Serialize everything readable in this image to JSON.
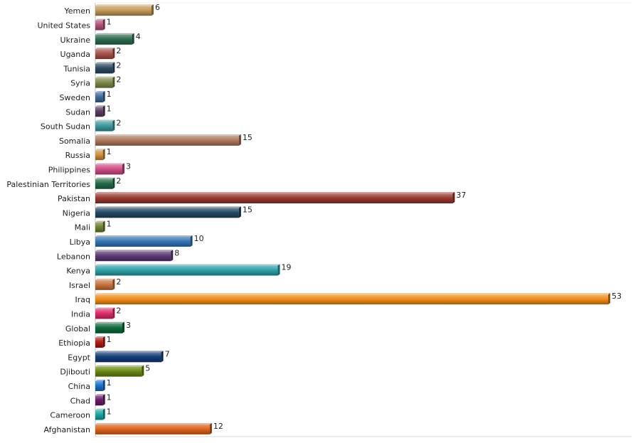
{
  "chart_data": {
    "type": "bar",
    "orientation": "horizontal",
    "title": "",
    "xlabel": "",
    "ylabel": "",
    "xlim": [
      0,
      53
    ],
    "grid": false,
    "legend": "none",
    "categories": [
      "Yemen",
      "United States",
      "Ukraine",
      "Uganda",
      "Tunisia",
      "Syria",
      "Sweden",
      "Sudan",
      "South Sudan",
      "Somalia",
      "Russia",
      "Philippines",
      "Palestinian Territories",
      "Pakistan",
      "Nigeria",
      "Mali",
      "Libya",
      "Lebanon",
      "Kenya",
      "Israel",
      "Iraq",
      "India",
      "Global",
      "Ethiopia",
      "Egypt",
      "Djibouti",
      "China",
      "Chad",
      "Cameroon",
      "Afghanistan"
    ],
    "values": [
      6,
      1,
      4,
      2,
      2,
      2,
      1,
      1,
      2,
      15,
      1,
      3,
      2,
      37,
      15,
      1,
      10,
      8,
      19,
      2,
      53,
      2,
      3,
      1,
      7,
      5,
      1,
      1,
      1,
      12
    ],
    "colors": [
      "#c49a5a",
      "#b5527a",
      "#2e6b4f",
      "#a8524a",
      "#2e4a63",
      "#7d8a4a",
      "#3f6a9a",
      "#5a3d63",
      "#3d9aa0",
      "#b07a5e",
      "#d09040",
      "#cf4f86",
      "#236a45",
      "#9a3a32",
      "#244963",
      "#6f8430",
      "#3577b5",
      "#5a3a72",
      "#30a0a8",
      "#c8743e",
      "#f08e1c",
      "#dd2a6a",
      "#0f6a3a",
      "#b01a12",
      "#143d78",
      "#6a8a14",
      "#1870c8",
      "#6a1a6a",
      "#18a8a8",
      "#e0641e"
    ]
  }
}
